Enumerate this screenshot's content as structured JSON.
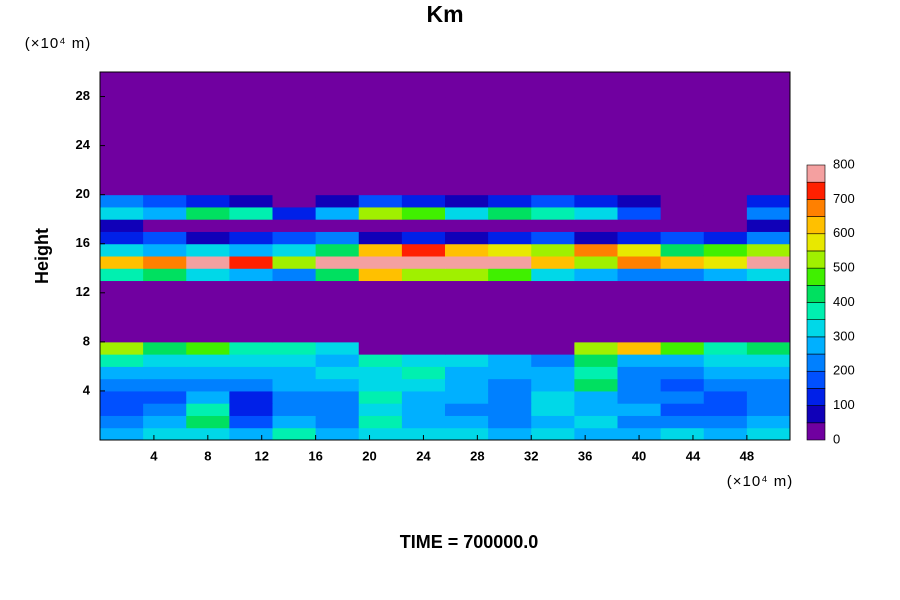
{
  "chart_data": {
    "type": "contour",
    "title": "Km",
    "ylabel": "Height",
    "xunit": "(×10⁴ m)",
    "yunit": "(×10⁴ m)",
    "footer": "TIME = 700000.0",
    "xlim": [
      0,
      51.2
    ],
    "ylim": [
      0,
      30
    ],
    "xticks": [
      4,
      8,
      12,
      16,
      20,
      24,
      28,
      32,
      36,
      40,
      44,
      48
    ],
    "yticks": [
      4,
      8,
      12,
      16,
      20,
      24,
      28
    ],
    "colorbar": {
      "levels": [
        0,
        50,
        100,
        150,
        200,
        250,
        300,
        350,
        400,
        450,
        500,
        550,
        600,
        650,
        700,
        750,
        800
      ],
      "colors": [
        "#7000a0",
        "#1000b8",
        "#0020e8",
        "#0050ff",
        "#0080ff",
        "#00b0ff",
        "#00d8e8",
        "#00f0b0",
        "#00e060",
        "#40f000",
        "#a0f000",
        "#e8e800",
        "#ffc000",
        "#ff8000",
        "#ff2000",
        "#f4a0a0"
      ],
      "ticks": [
        0,
        100,
        200,
        300,
        400,
        500,
        600,
        700,
        800
      ]
    },
    "z": [
      [
        250,
        300,
        320,
        250,
        350,
        250,
        300,
        320,
        300,
        280,
        300,
        280,
        250,
        300,
        250,
        300
      ],
      [
        200,
        250,
        400,
        150,
        250,
        200,
        350,
        250,
        250,
        200,
        250,
        300,
        200,
        200,
        200,
        250
      ],
      [
        150,
        200,
        350,
        100,
        200,
        200,
        300,
        250,
        200,
        200,
        300,
        250,
        250,
        150,
        150,
        200
      ],
      [
        150,
        180,
        250,
        120,
        200,
        220,
        350,
        250,
        250,
        200,
        300,
        250,
        200,
        200,
        150,
        200
      ],
      [
        200,
        220,
        200,
        200,
        250,
        250,
        300,
        300,
        250,
        200,
        250,
        400,
        200,
        150,
        200,
        200
      ],
      [
        250,
        250,
        250,
        250,
        250,
        300,
        300,
        350,
        250,
        250,
        250,
        350,
        200,
        200,
        250,
        250
      ],
      [
        350,
        300,
        300,
        300,
        300,
        250,
        350,
        300,
        300,
        250,
        200,
        400,
        250,
        250,
        300,
        300
      ],
      [
        500,
        400,
        450,
        350,
        350,
        300,
        0,
        0,
        0,
        0,
        0,
        500,
        600,
        450,
        350,
        400
      ],
      [
        0,
        0,
        0,
        0,
        0,
        0,
        0,
        0,
        0,
        0,
        0,
        0,
        0,
        0,
        0,
        0
      ],
      [
        0,
        0,
        0,
        0,
        0,
        0,
        0,
        0,
        0,
        0,
        0,
        0,
        0,
        0,
        0,
        0
      ],
      [
        0,
        0,
        0,
        0,
        0,
        0,
        0,
        0,
        0,
        0,
        0,
        0,
        0,
        0,
        0,
        0
      ],
      [
        0,
        0,
        0,
        0,
        0,
        0,
        0,
        0,
        0,
        0,
        0,
        0,
        0,
        0,
        0,
        0
      ],
      [
        0,
        0,
        0,
        0,
        0,
        0,
        0,
        0,
        0,
        0,
        0,
        0,
        0,
        0,
        0,
        0
      ],
      [
        350,
        400,
        300,
        250,
        200,
        400,
        600,
        500,
        500,
        450,
        300,
        250,
        200,
        200,
        250,
        300
      ],
      [
        600,
        650,
        800,
        700,
        500,
        800,
        850,
        800,
        850,
        800,
        600,
        500,
        650,
        600,
        550,
        750
      ],
      [
        300,
        250,
        300,
        250,
        300,
        400,
        600,
        700,
        600,
        550,
        500,
        650,
        550,
        400,
        450,
        500
      ],
      [
        100,
        150,
        50,
        100,
        150,
        200,
        50,
        100,
        50,
        100,
        150,
        50,
        100,
        150,
        100,
        200
      ],
      [
        50,
        0,
        0,
        0,
        0,
        0,
        0,
        0,
        0,
        0,
        0,
        0,
        0,
        0,
        0,
        50
      ],
      [
        300,
        250,
        400,
        350,
        100,
        250,
        500,
        450,
        300,
        400,
        350,
        300,
        150,
        0,
        0,
        200
      ],
      [
        200,
        150,
        100,
        50,
        0,
        50,
        150,
        100,
        50,
        100,
        150,
        100,
        50,
        0,
        0,
        100
      ],
      [
        0,
        0,
        0,
        0,
        0,
        0,
        0,
        0,
        0,
        0,
        0,
        0,
        0,
        0,
        0,
        0
      ],
      [
        0,
        0,
        0,
        0,
        0,
        0,
        0,
        0,
        0,
        0,
        0,
        0,
        0,
        0,
        0,
        0
      ],
      [
        0,
        0,
        0,
        0,
        0,
        0,
        0,
        0,
        0,
        0,
        0,
        0,
        0,
        0,
        0,
        0
      ],
      [
        0,
        0,
        0,
        0,
        0,
        0,
        0,
        0,
        0,
        0,
        0,
        0,
        0,
        0,
        0,
        0
      ],
      [
        0,
        0,
        0,
        0,
        0,
        0,
        0,
        0,
        0,
        0,
        0,
        0,
        0,
        0,
        0,
        0
      ],
      [
        0,
        0,
        0,
        0,
        0,
        0,
        0,
        0,
        0,
        0,
        0,
        0,
        0,
        0,
        0,
        0
      ],
      [
        0,
        0,
        0,
        0,
        0,
        0,
        0,
        0,
        0,
        0,
        0,
        0,
        0,
        0,
        0,
        0
      ],
      [
        0,
        0,
        0,
        0,
        0,
        0,
        0,
        0,
        0,
        0,
        0,
        0,
        0,
        0,
        0,
        0
      ],
      [
        0,
        0,
        0,
        0,
        0,
        0,
        0,
        0,
        0,
        0,
        0,
        0,
        0,
        0,
        0,
        0
      ],
      [
        0,
        0,
        0,
        0,
        0,
        0,
        0,
        0,
        0,
        0,
        0,
        0,
        0,
        0,
        0,
        0
      ]
    ]
  }
}
